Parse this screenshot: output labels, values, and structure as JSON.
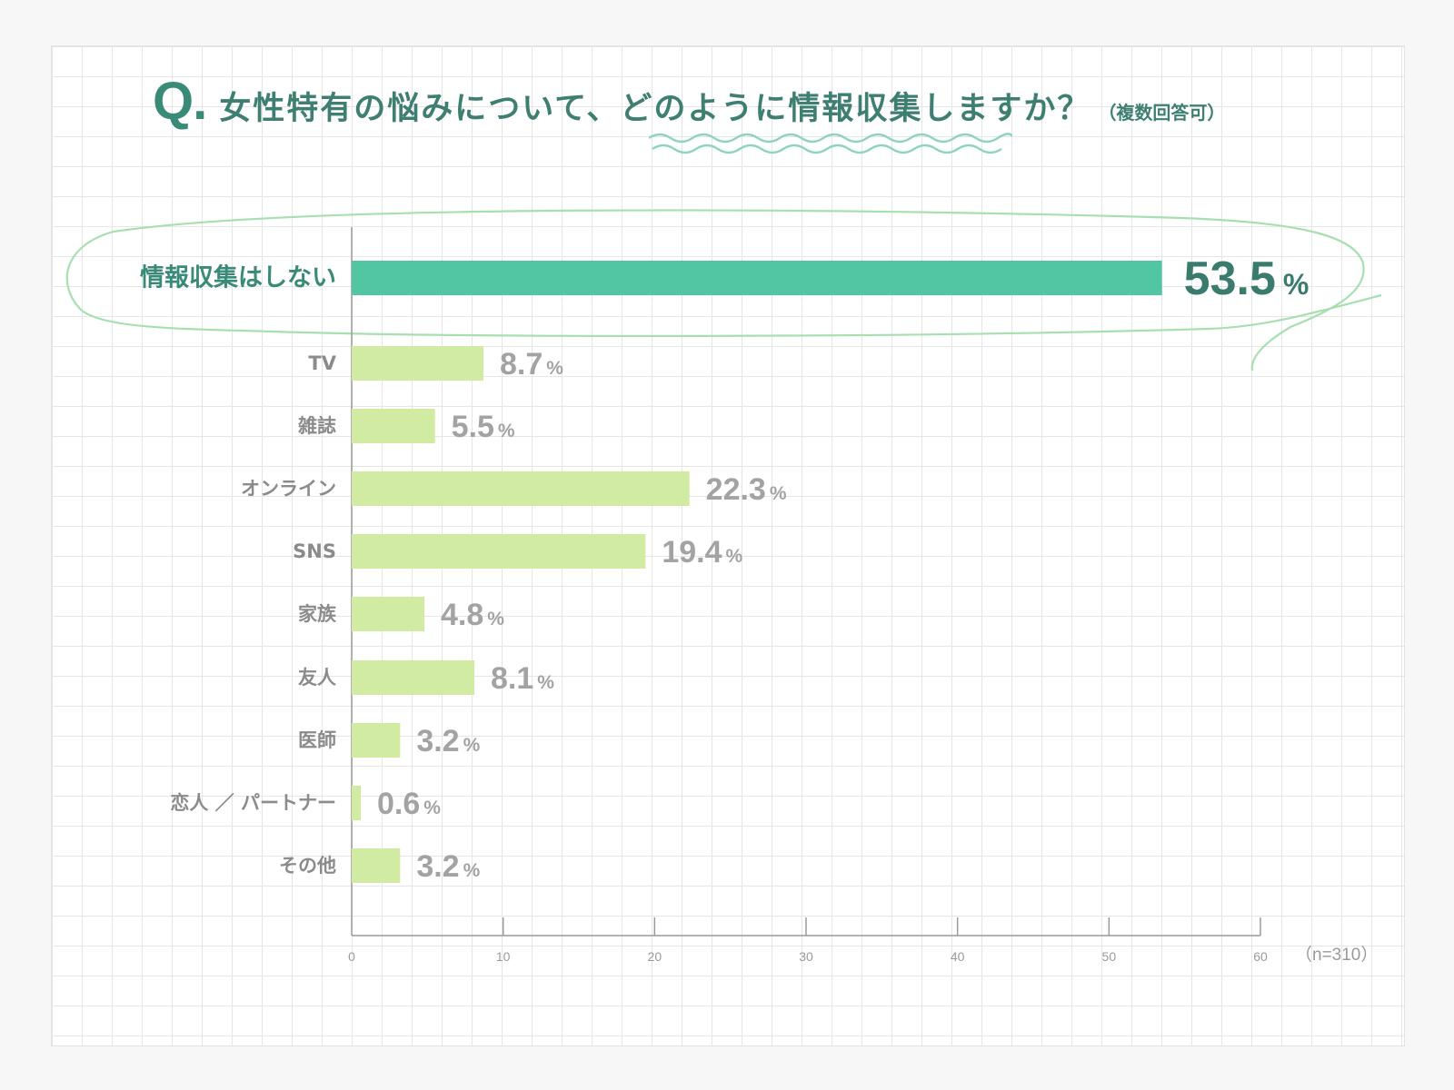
{
  "title": {
    "q_mark": "Q.",
    "question": "女性特有の悩みについて、どのように情報収集しますか？",
    "note": "（複数回答可）"
  },
  "colors": {
    "highlight_bar": "#52c6a3",
    "normal_bar": "#d2eba3",
    "accent": "#3a8a78",
    "outline": "#a7dfb1"
  },
  "chart_data": {
    "type": "bar",
    "orientation": "horizontal",
    "title": "女性特有の悩みについて、どのように情報収集しますか？（複数回答可）",
    "categories": [
      "情報収集はしない",
      "TV",
      "雑誌",
      "オンライン",
      "SNS",
      "家族",
      "友人",
      "医師",
      "恋人 ／ パートナー",
      "その他"
    ],
    "values": [
      53.5,
      8.7,
      5.5,
      22.3,
      19.4,
      4.8,
      8.1,
      3.2,
      0.6,
      3.2
    ],
    "value_labels": [
      "53.5",
      "8.7",
      "5.5",
      "22.3",
      "19.4",
      "4.8",
      "8.1",
      "3.2",
      "0.6",
      "3.2"
    ],
    "value_suffix": "%",
    "highlight_index": 0,
    "xlim": [
      0,
      60
    ],
    "xticks": [
      0,
      10,
      20,
      30,
      40,
      50,
      60
    ],
    "xlabel": "",
    "ylabel": "",
    "sample_note": "（n=310）",
    "grid": true
  }
}
